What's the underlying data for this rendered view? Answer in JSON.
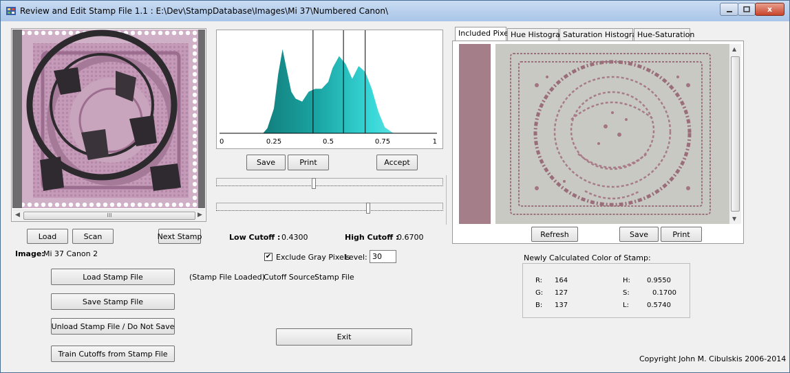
{
  "window": {
    "title": "Review and Edit Stamp File 1.1 :  E:\\Dev\\StampDatabase\\Images\\Mi 37\\Numbered Canon\\",
    "close_glyph": "x"
  },
  "stamp": {
    "scroll_thumb": "III",
    "load_label": "Load",
    "scan_label": "Scan",
    "next_label": "Next Stamp",
    "image_label": "Image:",
    "image_name": "Mi 37 Canon 2"
  },
  "histogram": {
    "ticks": [
      "0",
      "0.25",
      "0.5",
      "0.75",
      "1"
    ],
    "save_label": "Save",
    "print_label": "Print",
    "accept_label": "Accept"
  },
  "cutoffs": {
    "low_label": "Low Cutoff :",
    "low_value": "0.4300",
    "high_label": "High Cutoff :",
    "high_value": "0.6700",
    "exclude_label": "Exclude Gray Pixels",
    "exclude_checked": true,
    "level_label": "Level:",
    "level_value": "30"
  },
  "tabs": [
    "Included Pixels",
    "Hue Histogram",
    "Saturation Histogram",
    "Hue-Saturation"
  ],
  "pixels_panel": {
    "refresh_label": "Refresh",
    "save_label": "Save",
    "print_label": "Print"
  },
  "stamp_file": {
    "load_label": "Load Stamp File",
    "save_label": "Save Stamp File",
    "unload_label": "Unload Stamp File / Do Not Save",
    "train_label": "Train Cutoffs from Stamp File",
    "status": "(Stamp File Loaded)",
    "source_label": "Cutoff Source:",
    "source_value": "Stamp File"
  },
  "color": {
    "heading": "Newly Calculated Color of Stamp:",
    "r_label": "R:",
    "r": "164",
    "g_label": "G:",
    "g": "127",
    "b_label": "B:",
    "b": "137",
    "h_label": "H:",
    "h": "0.9550",
    "s_label": "S:",
    "s": "0.1700",
    "l_label": "L:",
    "l": "0.5740",
    "swatch_color": "#a47f89"
  },
  "exit_label": "Exit",
  "copyright": "Copyright John M. Cibulskis 2006-2014",
  "chart_data": {
    "type": "area",
    "title": "",
    "xlabel": "",
    "ylabel": "",
    "xlim": [
      0,
      1
    ],
    "x_ticks": [
      0,
      0.25,
      0.5,
      0.75,
      1
    ],
    "cutoff_lines": [
      0.43,
      0.57,
      0.67
    ],
    "x": [
      0.0,
      0.2,
      0.22,
      0.25,
      0.27,
      0.29,
      0.31,
      0.33,
      0.35,
      0.38,
      0.41,
      0.44,
      0.47,
      0.5,
      0.52,
      0.55,
      0.58,
      0.61,
      0.64,
      0.67,
      0.7,
      0.73,
      0.76,
      0.8,
      0.84,
      1.0
    ],
    "values": [
      0,
      0,
      0.05,
      0.25,
      0.6,
      0.85,
      0.63,
      0.42,
      0.35,
      0.32,
      0.42,
      0.45,
      0.45,
      0.52,
      0.66,
      0.78,
      0.7,
      0.55,
      0.68,
      0.62,
      0.45,
      0.22,
      0.06,
      0,
      0,
      0
    ]
  }
}
